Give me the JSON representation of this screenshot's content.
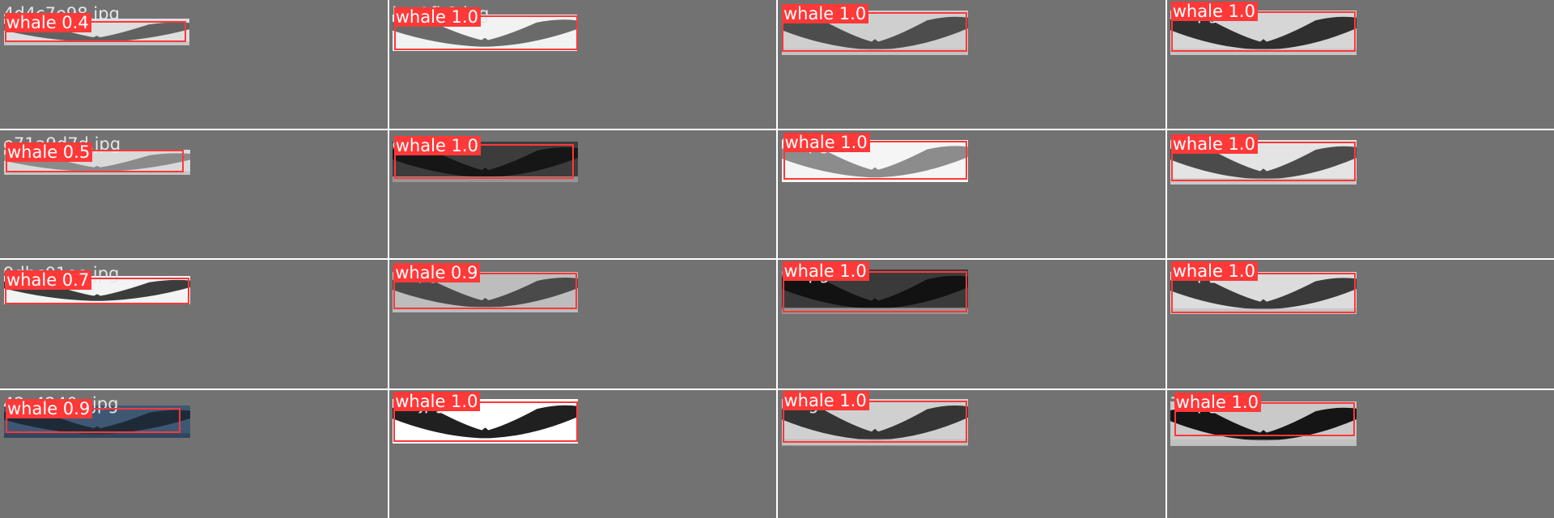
{
  "colors": {
    "tile_background": "#727272",
    "box_color": "#ff3838",
    "label_text": "#ffffff",
    "filename_text": "#e6e6e6"
  },
  "tiles": [
    {
      "filename": "4d4c7e98.jpg",
      "label": "whale 0.4",
      "tone": "grey",
      "sky": "#dedede",
      "fluke": "#616161"
    },
    {
      "filename": "b...1fb9.jpg",
      "label": "whale 1.0",
      "tone": "light",
      "sky": "#f2f2f2",
      "fluke": "#6a6a6a"
    },
    {
      "filename": "c...jpg",
      "label": "whale 1.0",
      "tone": "grey",
      "sky": "#cfcfcf",
      "fluke": "#4d4d4d"
    },
    {
      "filename": "3...pg",
      "label": "whale 1.0",
      "tone": "grey",
      "sky": "#d6d6d6",
      "fluke": "#2f2f2f"
    },
    {
      "filename": "e71a9d7d.jpg",
      "label": "whale 0.5",
      "tone": "grey",
      "sky": "#d9d9d9",
      "fluke": "#8a8a8a"
    },
    {
      "filename": "e...jpg",
      "label": "whale 1.0",
      "tone": "dark",
      "sky": "#3c3c3c",
      "fluke": "#161616"
    },
    {
      "filename": "8...pg",
      "label": "whale 1.0",
      "tone": "light",
      "sky": "#f5f5f5",
      "fluke": "#8c8c8c"
    },
    {
      "filename": "2...pg",
      "label": "whale 1.0",
      "tone": "grey",
      "sky": "#e4e4e4",
      "fluke": "#4b4b4b"
    },
    {
      "filename": "9dbc01ee.jpg",
      "label": "whale 0.7",
      "tone": "light",
      "sky": "#f3f3f3",
      "fluke": "#3c3c3c"
    },
    {
      "filename": "c...pg",
      "label": "whale 0.9",
      "tone": "grey",
      "sky": "#bdbdbd",
      "fluke": "#4a4a4a"
    },
    {
      "filename": "0...pg",
      "label": "whale 1.0",
      "tone": "dark",
      "sky": "#3a3a3a",
      "fluke": "#121212"
    },
    {
      "filename": "0...pg",
      "label": "whale 1.0",
      "tone": "grey",
      "sky": "#dcdcdc",
      "fluke": "#3a3a3a"
    },
    {
      "filename": "42c4240c.jpg",
      "label": "whale 0.9",
      "tone": "blue",
      "sky": "#3e5874",
      "fluke": "#1f2a38"
    },
    {
      "filename": "0...jpg",
      "label": "whale 1.0",
      "tone": "light",
      "sky": "#ffffff",
      "fluke": "#202020"
    },
    {
      "filename": "3...g",
      "label": "whale 1.0",
      "tone": "grey",
      "sky": "#d0d0d0",
      "fluke": "#353535"
    },
    {
      "filename": "7...pg",
      "label": "whale 1.0",
      "tone": "grey",
      "sky": "#c9c9c9",
      "fluke": "#151515"
    }
  ]
}
